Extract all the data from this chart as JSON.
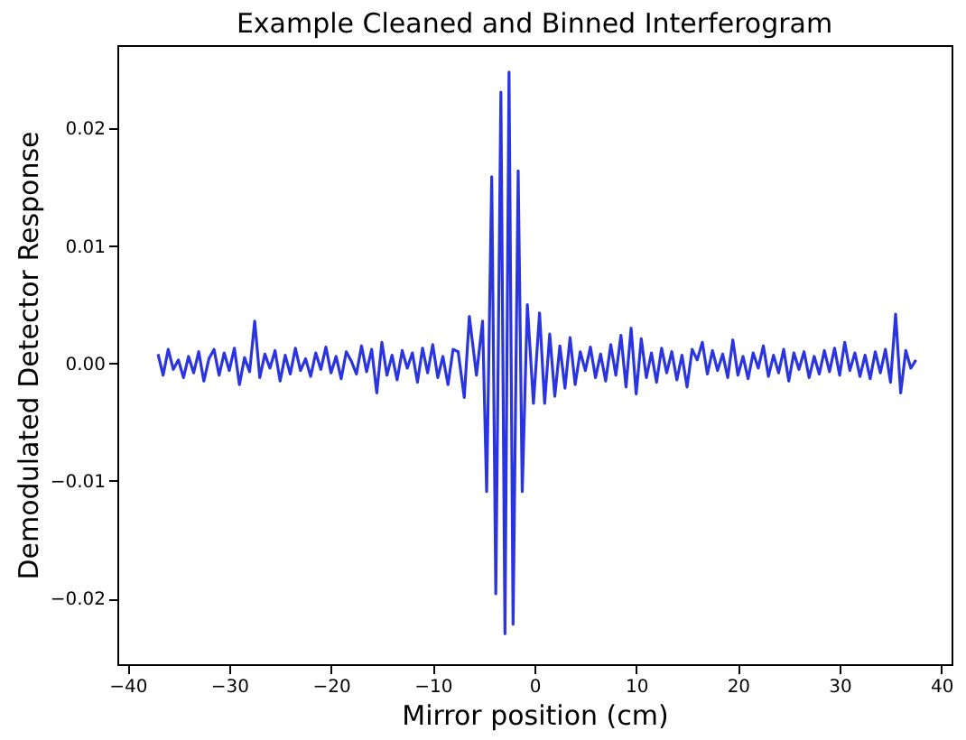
{
  "chart_data": {
    "type": "line",
    "title": "Example Cleaned and Binned Interferogram",
    "xlabel": "Mirror position (cm)",
    "ylabel": "Demodulated Detector Response",
    "x": [
      -37,
      -36.5,
      -36,
      -35.5,
      -35,
      -34.5,
      -34,
      -33.5,
      -33,
      -32.5,
      -32,
      -31.5,
      -31,
      -30.5,
      -30,
      -29.5,
      -29,
      -28.5,
      -28,
      -27.5,
      -27,
      -26.5,
      -26,
      -25.5,
      -25,
      -24.5,
      -24,
      -23.5,
      -23,
      -22.5,
      -22,
      -21.5,
      -21,
      -20.5,
      -20,
      -19.5,
      -19,
      -18.5,
      -18,
      -17.5,
      -17,
      -16.5,
      -16,
      -15.5,
      -15,
      -14.5,
      -14,
      -13.5,
      -13,
      -12.5,
      -12,
      -11.5,
      -11,
      -10.5,
      -10,
      -9.5,
      -9,
      -8.5,
      -8,
      -7.5,
      -6.9,
      -6.4,
      -5.7,
      -5.1,
      -4.7,
      -4.2,
      -3.8,
      -3.3,
      -2.9,
      -2.5,
      -2.1,
      -1.6,
      -1.2,
      -0.7,
      -0.1,
      0.5,
      1.0,
      1.5,
      2.0,
      2.5,
      3,
      3.5,
      4,
      4.5,
      5,
      5.5,
      6,
      6.5,
      7,
      7.5,
      8,
      8.5,
      9,
      9.5,
      10,
      10.5,
      11,
      11.5,
      12,
      12.5,
      13,
      13.5,
      14,
      14.5,
      15,
      15.5,
      16,
      16.5,
      17,
      17.5,
      18,
      18.5,
      19,
      19.5,
      20,
      20.5,
      21,
      21.5,
      22,
      22.5,
      23,
      23.5,
      24,
      24.5,
      25,
      25.5,
      26,
      26.5,
      27,
      27.5,
      28,
      28.5,
      29,
      29.5,
      30,
      30.5,
      31,
      31.5,
      32,
      32.5,
      33,
      33.5,
      34,
      34.5,
      35,
      35.5,
      36,
      36.5,
      37,
      37.5
    ],
    "series": [
      {
        "color": "#2a35e0",
        "values": [
          0.0008,
          -0.001,
          0.0012,
          -0.0005,
          0.0003,
          -0.0012,
          0.0006,
          -0.0008,
          0.001,
          -0.0015,
          0.0004,
          0.0012,
          -0.001,
          0.0009,
          -0.0006,
          0.0013,
          -0.0018,
          0.0005,
          -0.0007,
          0.0036,
          -0.0012,
          0.0008,
          -0.0004,
          0.0011,
          -0.0015,
          0.0007,
          -0.0009,
          0.0013,
          -0.0006,
          0.0004,
          -0.0011,
          0.0009,
          -0.0005,
          0.0014,
          -0.0008,
          0.0006,
          -0.0013,
          0.001,
          0.0002,
          -0.0009,
          0.0015,
          -0.0007,
          0.0012,
          -0.0025,
          0.0018,
          -0.001,
          0.0007,
          -0.0014,
          0.0011,
          -0.0004,
          0.0009,
          -0.0016,
          0.0013,
          -0.0008,
          0.0016,
          -0.0012,
          0.0006,
          -0.0018,
          0.0012,
          0.001,
          -0.0029,
          0.004,
          -0.001,
          0.0036,
          -0.0109,
          0.0159,
          -0.0196,
          0.0231,
          -0.023,
          0.0248,
          -0.0222,
          0.0164,
          -0.0109,
          0.005,
          -0.0034,
          0.0043,
          -0.0034,
          0.0025,
          -0.0028,
          0.0015,
          -0.0021,
          0.0022,
          -0.0018,
          0.001,
          -0.0006,
          0.0014,
          -0.0012,
          0.0008,
          -0.0015,
          0.0016,
          -0.001,
          0.0024,
          -0.002,
          0.003,
          -0.0026,
          0.0021,
          -0.0012,
          0.0009,
          -0.0016,
          0.0013,
          -0.0008,
          0.001,
          -0.0014,
          0.0007,
          -0.002,
          0.0012,
          0.0003,
          0.0018,
          -0.0009,
          0.0011,
          -0.0006,
          0.0008,
          -0.0012,
          0.002,
          -0.001,
          0.0006,
          -0.0013,
          0.0009,
          -0.0004,
          0.0015,
          -0.0011,
          0.0007,
          -0.0008,
          0.0012,
          -0.0015,
          0.0009,
          -0.0005,
          0.001,
          -0.0012,
          0.0006,
          -0.0009,
          0.0011,
          -0.0007,
          0.0013,
          -0.001,
          0.0018,
          -0.0006,
          0.0009,
          -0.0011,
          0.0007,
          -0.0013,
          0.001,
          -0.0008,
          0.0012,
          -0.0016,
          0.0042,
          -0.0025,
          0.0011,
          -0.0004,
          0.0003
        ]
      }
    ],
    "xlim": [
      -41,
      41
    ],
    "xticks": [
      {
        "value": -40,
        "label": "−40"
      },
      {
        "value": -30,
        "label": "−30"
      },
      {
        "value": -20,
        "label": "−20"
      },
      {
        "value": -10,
        "label": "−10"
      },
      0,
      10,
      20,
      30,
      40
    ],
    "ylim": [
      -0.0256,
      0.0271
    ],
    "yticks": [
      {
        "value": -0.02,
        "label": "−0.02"
      },
      {
        "value": -0.01,
        "label": "−0.01"
      },
      {
        "value": 0,
        "label": "0.00"
      },
      {
        "value": 0.01,
        "label": "0.01"
      },
      {
        "value": 0.02,
        "label": "0.02"
      }
    ],
    "grid": false,
    "marker": "none",
    "line_style": "solid"
  }
}
